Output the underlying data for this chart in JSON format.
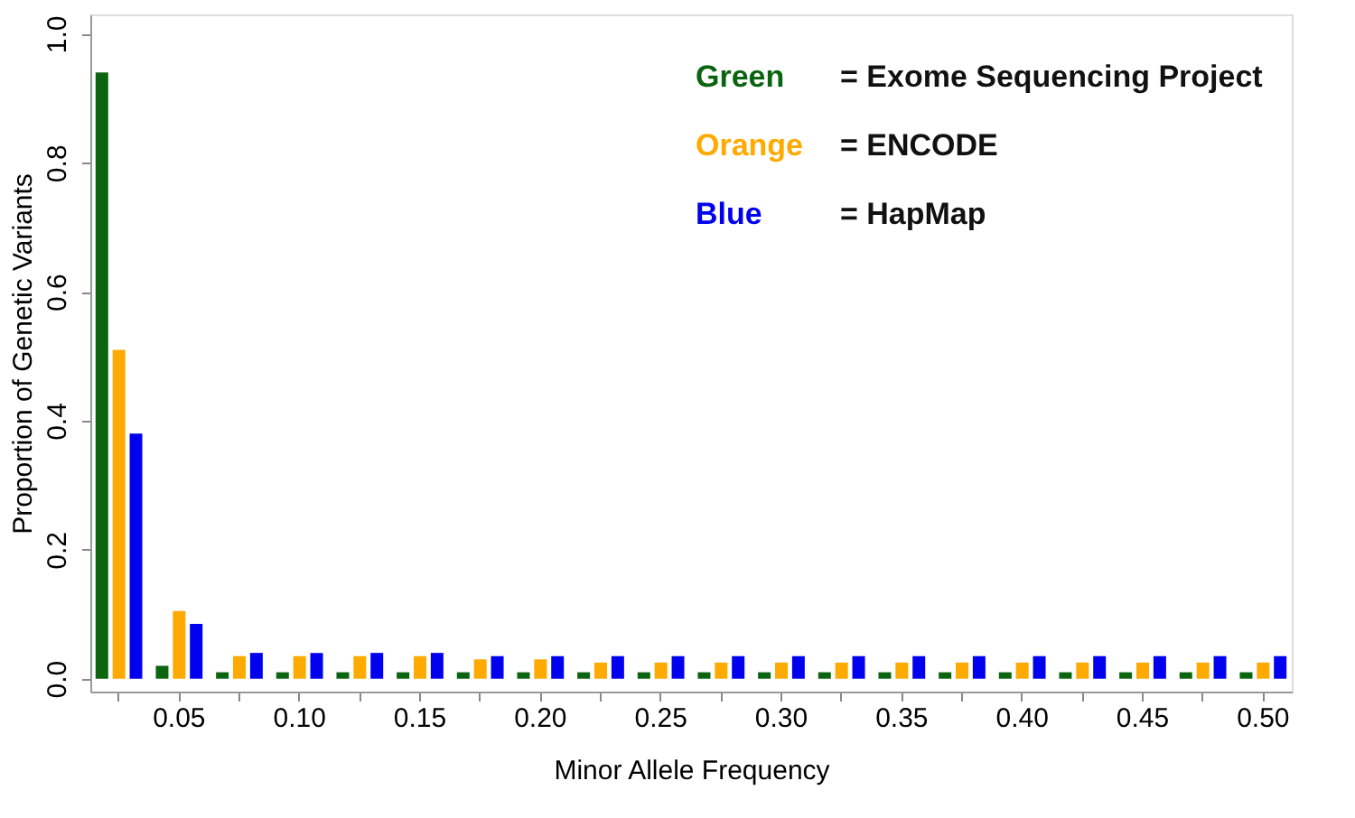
{
  "chart_data": {
    "type": "bar",
    "xlabel": "Minor Allele Frequency",
    "ylabel": "Proportion of Genetic Variants",
    "categories": [
      null,
      "0.05",
      null,
      "0.10",
      null,
      "0.15",
      null,
      "0.20",
      null,
      "0.25",
      null,
      "0.30",
      null,
      "0.35",
      null,
      "0.40",
      null,
      "0.45",
      null,
      "0.50"
    ],
    "series": [
      {
        "name": "Green",
        "color": "#0b6410",
        "values": [
          0.94,
          0.02,
          0.01,
          0.01,
          0.01,
          0.01,
          0.01,
          0.01,
          0.01,
          0.01,
          0.01,
          0.01,
          0.01,
          0.01,
          0.01,
          0.01,
          0.01,
          0.01,
          0.01,
          0.01
        ]
      },
      {
        "name": "Orange",
        "color": "#ffaa00",
        "values": [
          0.51,
          0.105,
          0.035,
          0.035,
          0.035,
          0.035,
          0.03,
          0.03,
          0.025,
          0.025,
          0.025,
          0.025,
          0.025,
          0.025,
          0.025,
          0.025,
          0.025,
          0.025,
          0.025,
          0.025
        ]
      },
      {
        "name": "Blue",
        "color": "#0000ee",
        "values": [
          0.38,
          0.085,
          0.04,
          0.04,
          0.04,
          0.04,
          0.035,
          0.035,
          0.035,
          0.035,
          0.035,
          0.035,
          0.035,
          0.035,
          0.035,
          0.035,
          0.035,
          0.035,
          0.035,
          0.035
        ]
      }
    ],
    "annotations": [
      "= Exome Sequencing Project",
      "= ENCODE",
      "= HapMap"
    ],
    "ylim": [
      -0.02,
      1.03
    ],
    "yticks": [
      {
        "value": 0,
        "label": "0.0"
      },
      0.2,
      0.4,
      0.6,
      0.8,
      {
        "value": 1,
        "label": "1.0"
      }
    ],
    "grid": false
  }
}
